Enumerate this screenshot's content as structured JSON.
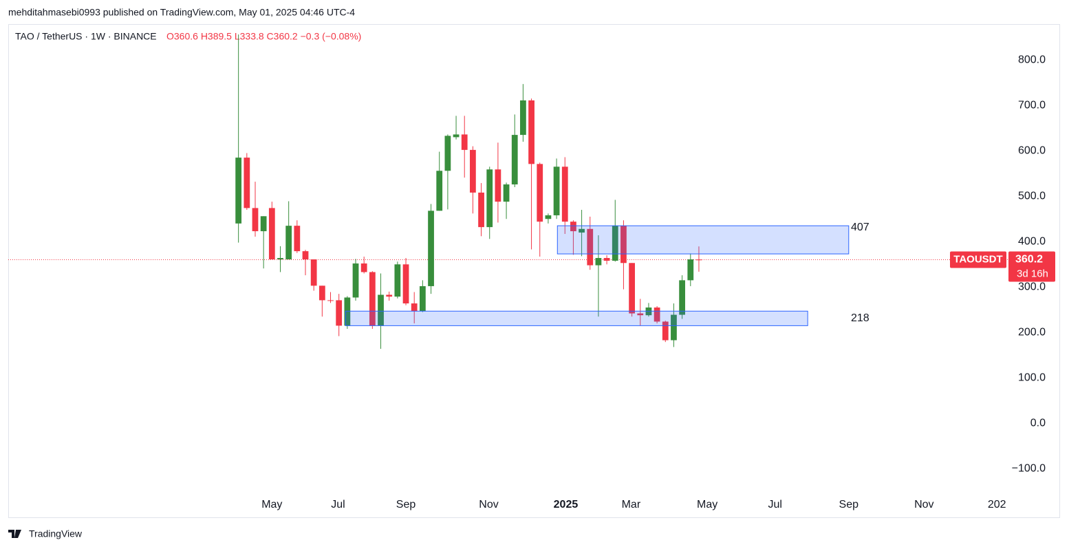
{
  "chart_data": {
    "type": "candlestick",
    "header": "mehditahmasebi0993 published on TradingView.com, May 01, 2025 04:46 UTC-4",
    "symbol": "TAO / TetherUS · 1W · BINANCE",
    "ohlc_text": "O360.6 H389.5 L333.8 C360.2 −0.3 (−0.08%)",
    "brand": "TradingView",
    "up_color": "#388e3c",
    "down_color": "#f23645",
    "open": [
      440,
      585,
      474,
      423,
      474,
      361,
      361,
      435,
      379,
      361,
      303,
      271,
      271,
      215,
      277,
      352,
      333,
      215,
      283,
      279,
      350,
      264,
      247,
      302,
      468,
      556,
      630,
      636,
      602,
      508,
      432,
      559,
      488,
      526,
      635,
      711,
      571,
      450,
      458,
      565,
      444,
      420,
      428,
      348,
      364,
      358,
      435,
      353,
      242,
      238,
      255,
      224,
      183,
      239,
      315,
      360.6
    ],
    "high": [
      856,
      595,
      532,
      456,
      488,
      390,
      489,
      447,
      382,
      361,
      303,
      289,
      285,
      280,
      362,
      367,
      335,
      330,
      290,
      356,
      364,
      289,
      315,
      483,
      598,
      636,
      677,
      677,
      610,
      529,
      565,
      618,
      530,
      680,
      747,
      715,
      574,
      462,
      583,
      586,
      447,
      470,
      455,
      414,
      370,
      492,
      447,
      353,
      274,
      265,
      258,
      226,
      264,
      326,
      374,
      389.5
    ],
    "low": [
      398,
      470,
      411,
      341,
      361,
      333,
      361,
      375,
      326,
      292,
      235,
      265,
      192,
      208,
      270,
      330,
      208,
      164,
      270,
      275,
      260,
      220,
      245,
      285,
      468,
      471,
      625,
      541,
      462,
      412,
      406,
      442,
      450,
      520,
      620,
      383,
      367,
      440,
      450,
      417,
      371,
      368,
      338,
      235,
      350,
      356,
      295,
      235,
      215,
      235,
      220,
      179,
      168,
      230,
      302,
      333.8
    ],
    "close": [
      585,
      474,
      423,
      456,
      361,
      364,
      435,
      379,
      361,
      303,
      271,
      270,
      215,
      277,
      352,
      333,
      215,
      283,
      279,
      350,
      264,
      247,
      302,
      468,
      556,
      633,
      636,
      602,
      508,
      432,
      559,
      488,
      526,
      635,
      711,
      571,
      444,
      458,
      565,
      444,
      423,
      428,
      348,
      364,
      358,
      435,
      353,
      242,
      238,
      255,
      224,
      183,
      239,
      315,
      361,
      360.2
    ],
    "xlim": [
      -27.5,
      91.9
    ],
    "xticks": [
      {
        "value": 4.0,
        "label": "May"
      },
      {
        "value": 11.9,
        "label": "Jul"
      },
      {
        "value": 20.0,
        "label": "Sep"
      },
      {
        "value": 29.9,
        "label": "Nov"
      },
      {
        "value": 39.1,
        "label": "2025"
      },
      {
        "value": 46.9,
        "label": "Mar"
      },
      {
        "value": 56.0,
        "label": "May"
      },
      {
        "value": 64.1,
        "label": "Jul"
      },
      {
        "value": 72.9,
        "label": "Sep"
      },
      {
        "value": 81.9,
        "label": "Nov"
      },
      {
        "value": 90.6,
        "label": "202"
      }
    ],
    "ylim": [
      -207,
      879
    ],
    "yticks": [
      {
        "value": 800,
        "label": "800.0"
      },
      {
        "value": 700,
        "label": "700.0"
      },
      {
        "value": 600,
        "label": "600.0"
      },
      {
        "value": 500,
        "label": "500.0"
      },
      {
        "value": 400,
        "label": "400.0"
      },
      {
        "value": 300,
        "label": "300.0"
      },
      {
        "value": 200,
        "label": "200.0"
      },
      {
        "value": 100,
        "label": "100.0"
      },
      {
        "value": 0,
        "label": "0.0"
      },
      {
        "value": -100,
        "label": "−100.0"
      }
    ],
    "zones": [
      {
        "label": "407",
        "x": [
          38.1,
          72.9
        ],
        "y": [
          373,
          435
        ],
        "color": "#2962ff"
      },
      {
        "label": "218",
        "x": [
          12.8,
          68.0
        ],
        "y": [
          215,
          247
        ],
        "color": "#2962ff"
      }
    ],
    "price_line": {
      "name": "TAOUSDT",
      "value": 360.2,
      "countdown": "3d 16h",
      "color": "#f23645"
    }
  }
}
